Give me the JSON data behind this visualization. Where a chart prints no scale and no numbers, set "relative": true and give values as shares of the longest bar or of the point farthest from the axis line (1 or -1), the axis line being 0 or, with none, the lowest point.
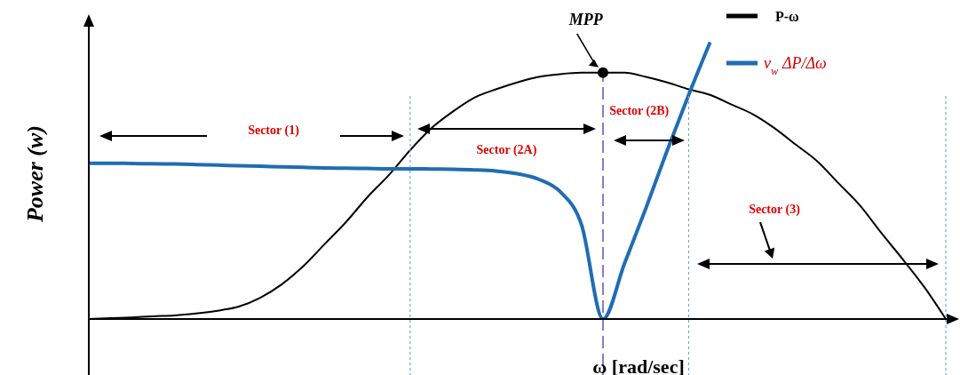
{
  "chart_data": {
    "type": "line",
    "relative": true,
    "xlabel": "ω [rad/sec]",
    "ylabel": "Power (w)",
    "legend": "top right",
    "categories": [
      null,
      null,
      null,
      null,
      null,
      null,
      null,
      null,
      null,
      null,
      null,
      null,
      null,
      null,
      null,
      null,
      null,
      null,
      null,
      null,
      null,
      null,
      null,
      null,
      null,
      null,
      null,
      null,
      null,
      null,
      null,
      null,
      null,
      null,
      null,
      null,
      null,
      null,
      null,
      null,
      null
    ],
    "series": [
      {
        "name": "P-ω",
        "color": "#000000",
        "values": [
          0,
          0.003,
          0.006,
          0.01,
          0.013,
          0.02,
          0.03,
          0.045,
          0.077,
          0.125,
          0.19,
          0.27,
          0.35,
          0.44,
          0.52,
          0.61,
          0.69,
          0.75,
          0.8,
          0.83,
          0.855,
          0.875,
          0.885,
          0.89,
          0.89,
          0.89,
          0.875,
          0.855,
          0.83,
          0.81,
          0.775,
          0.74,
          0.69,
          0.63,
          0.57,
          0.49,
          0.41,
          0.31,
          0.215,
          0.115,
          0
        ]
      },
      {
        "name": "v$_{w}$ ΔP/Δω",
        "color": "#1f6db3",
        "values": [
          0.563,
          0.563,
          0.562,
          0.561,
          0.56,
          0.558,
          0.556,
          0.554,
          0.552,
          0.55,
          0.548,
          0.546,
          0.545,
          0.544,
          0.543,
          0.543,
          0.542,
          0.541,
          0.539,
          0.535,
          0.525,
          0.505,
          0.46,
          0.34,
          0,
          0.2,
          0.4,
          0.61,
          0.81,
          1,
          null,
          null,
          null,
          null,
          null,
          null,
          null,
          null,
          null,
          null,
          null
        ]
      }
    ],
    "annotations": [
      "MPP",
      "Sector (1)",
      "Sector (2A)",
      "Sector (2B)",
      "Sector (3)"
    ]
  }
}
